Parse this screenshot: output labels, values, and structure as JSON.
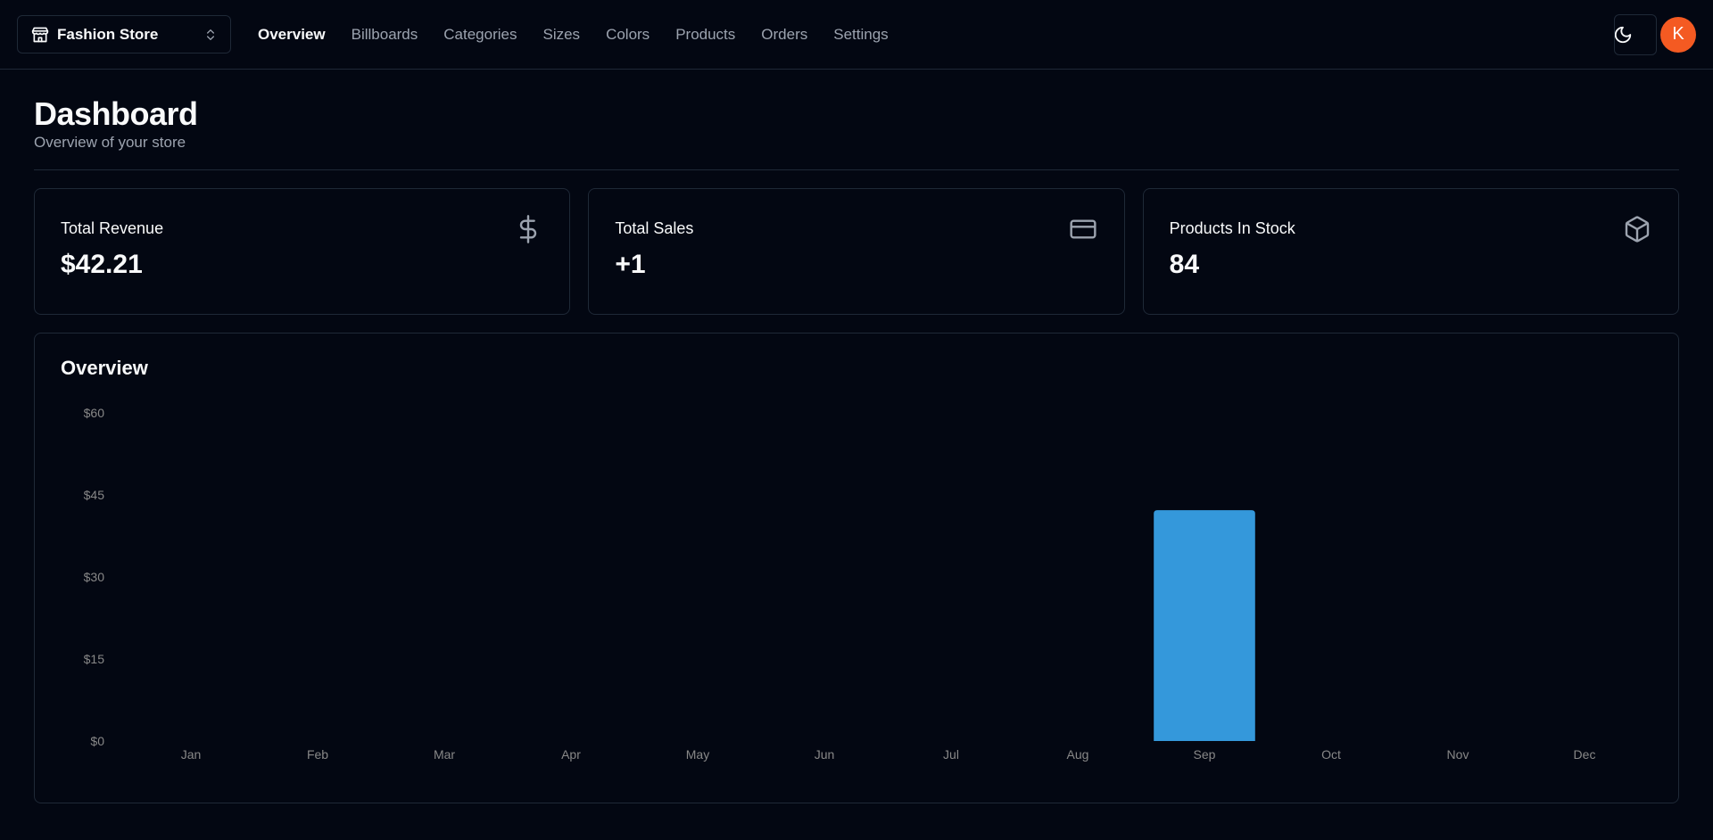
{
  "store": {
    "name": "Fashion Store"
  },
  "nav": {
    "items": [
      "Overview",
      "Billboards",
      "Categories",
      "Sizes",
      "Colors",
      "Products",
      "Orders",
      "Settings"
    ],
    "active": "Overview"
  },
  "user": {
    "initial": "K",
    "avatar_color": "#f45a22"
  },
  "page": {
    "title": "Dashboard",
    "description": "Overview of your store"
  },
  "stats": [
    {
      "label": "Total Revenue",
      "value": "$42.21",
      "icon": "dollar-icon"
    },
    {
      "label": "Total Sales",
      "value": "+1",
      "icon": "credit-card-icon"
    },
    {
      "label": "Products In Stock",
      "value": "84",
      "icon": "package-icon"
    }
  ],
  "overview": {
    "title": "Overview"
  },
  "chart_data": {
    "type": "bar",
    "categories": [
      "Jan",
      "Feb",
      "Mar",
      "Apr",
      "May",
      "Jun",
      "Jul",
      "Aug",
      "Sep",
      "Oct",
      "Nov",
      "Dec"
    ],
    "values": [
      0,
      0,
      0,
      0,
      0,
      0,
      0,
      0,
      42.21,
      0,
      0,
      0
    ],
    "ylim": [
      0,
      60
    ],
    "yticks": [
      "$0",
      "$15",
      "$30",
      "$45",
      "$60"
    ],
    "bar_color": "#3498db",
    "grid": false
  }
}
